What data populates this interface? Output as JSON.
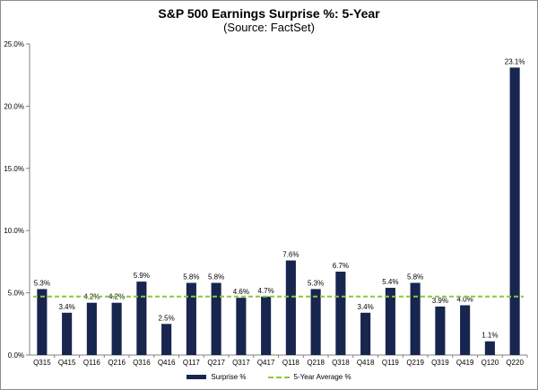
{
  "chart_data": {
    "type": "bar",
    "title": "S&P 500 Earnings Surprise %: 5-Year",
    "subtitle": "(Source: FactSet)",
    "categories": [
      "Q315",
      "Q415",
      "Q116",
      "Q216",
      "Q316",
      "Q416",
      "Q117",
      "Q217",
      "Q317",
      "Q417",
      "Q118",
      "Q218",
      "Q318",
      "Q418",
      "Q119",
      "Q219",
      "Q319",
      "Q419",
      "Q120",
      "Q220"
    ],
    "series": [
      {
        "name": "Surprise %",
        "values": [
          5.3,
          3.4,
          4.2,
          4.2,
          5.9,
          2.5,
          5.8,
          5.8,
          4.6,
          4.7,
          7.6,
          5.3,
          6.7,
          3.4,
          5.4,
          5.8,
          3.9,
          4.0,
          1.1,
          23.1
        ],
        "labels": [
          "5.3%",
          "3.4%",
          "4.2%",
          "4.2%",
          "5.9%",
          "2.5%",
          "5.8%",
          "5.8%",
          "4.6%",
          "4.7%",
          "7.6%",
          "5.3%",
          "6.7%",
          "3.4%",
          "5.4%",
          "5.8%",
          "3.9%",
          "4.0%",
          "1.1%",
          "23.1%"
        ],
        "color": "#17254f"
      }
    ],
    "reference_line": {
      "name": "5-Year Average %",
      "value": 4.7,
      "color": "#8dc63f"
    },
    "ylim": [
      0,
      25
    ],
    "yticks": [
      0,
      5,
      10,
      15,
      20,
      25
    ],
    "ytick_labels": [
      "0.0%",
      "5.0%",
      "10.0%",
      "15.0%",
      "20.0%",
      "25.0%"
    ],
    "grid": false,
    "legend": "bottom"
  }
}
